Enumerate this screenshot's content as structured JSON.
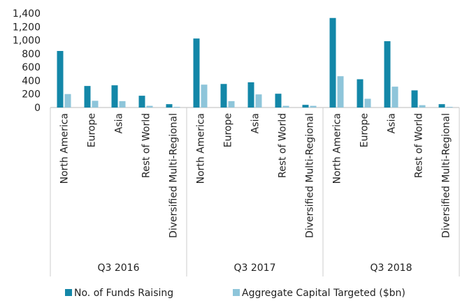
{
  "chart_data": {
    "type": "bar",
    "groups": [
      "Q3 2016",
      "Q3 2017",
      "Q3 2018"
    ],
    "categories": [
      "North America",
      "Europe",
      "Asia",
      "Rest of World",
      "Diversified Multi-Regional",
      "North America",
      "Europe",
      "Asia",
      "Rest of World",
      "Diversified Multi-Regional",
      "North America",
      "Europe",
      "Asia",
      "Rest of World",
      "Diversified Multi-Regional"
    ],
    "series": [
      {
        "name": "No. of Funds Raising",
        "color": "#1387a8",
        "values": [
          840,
          320,
          330,
          175,
          50,
          1025,
          350,
          375,
          205,
          40,
          1330,
          420,
          985,
          255,
          50
        ]
      },
      {
        "name": "Aggregate Capital Targeted ($bn)",
        "color": "#8ec5da",
        "values": [
          200,
          100,
          95,
          25,
          10,
          340,
          95,
          195,
          25,
          25,
          465,
          130,
          310,
          35,
          10
        ]
      }
    ],
    "ylim": [
      0,
      1400
    ],
    "yticks": [
      0,
      200,
      400,
      600,
      800,
      {
        "value": 1000,
        "label": "1,000"
      },
      {
        "value": 1200,
        "label": "1,200"
      },
      {
        "value": 1400,
        "label": "1,400"
      }
    ],
    "grid": false,
    "legend": "bottom"
  }
}
